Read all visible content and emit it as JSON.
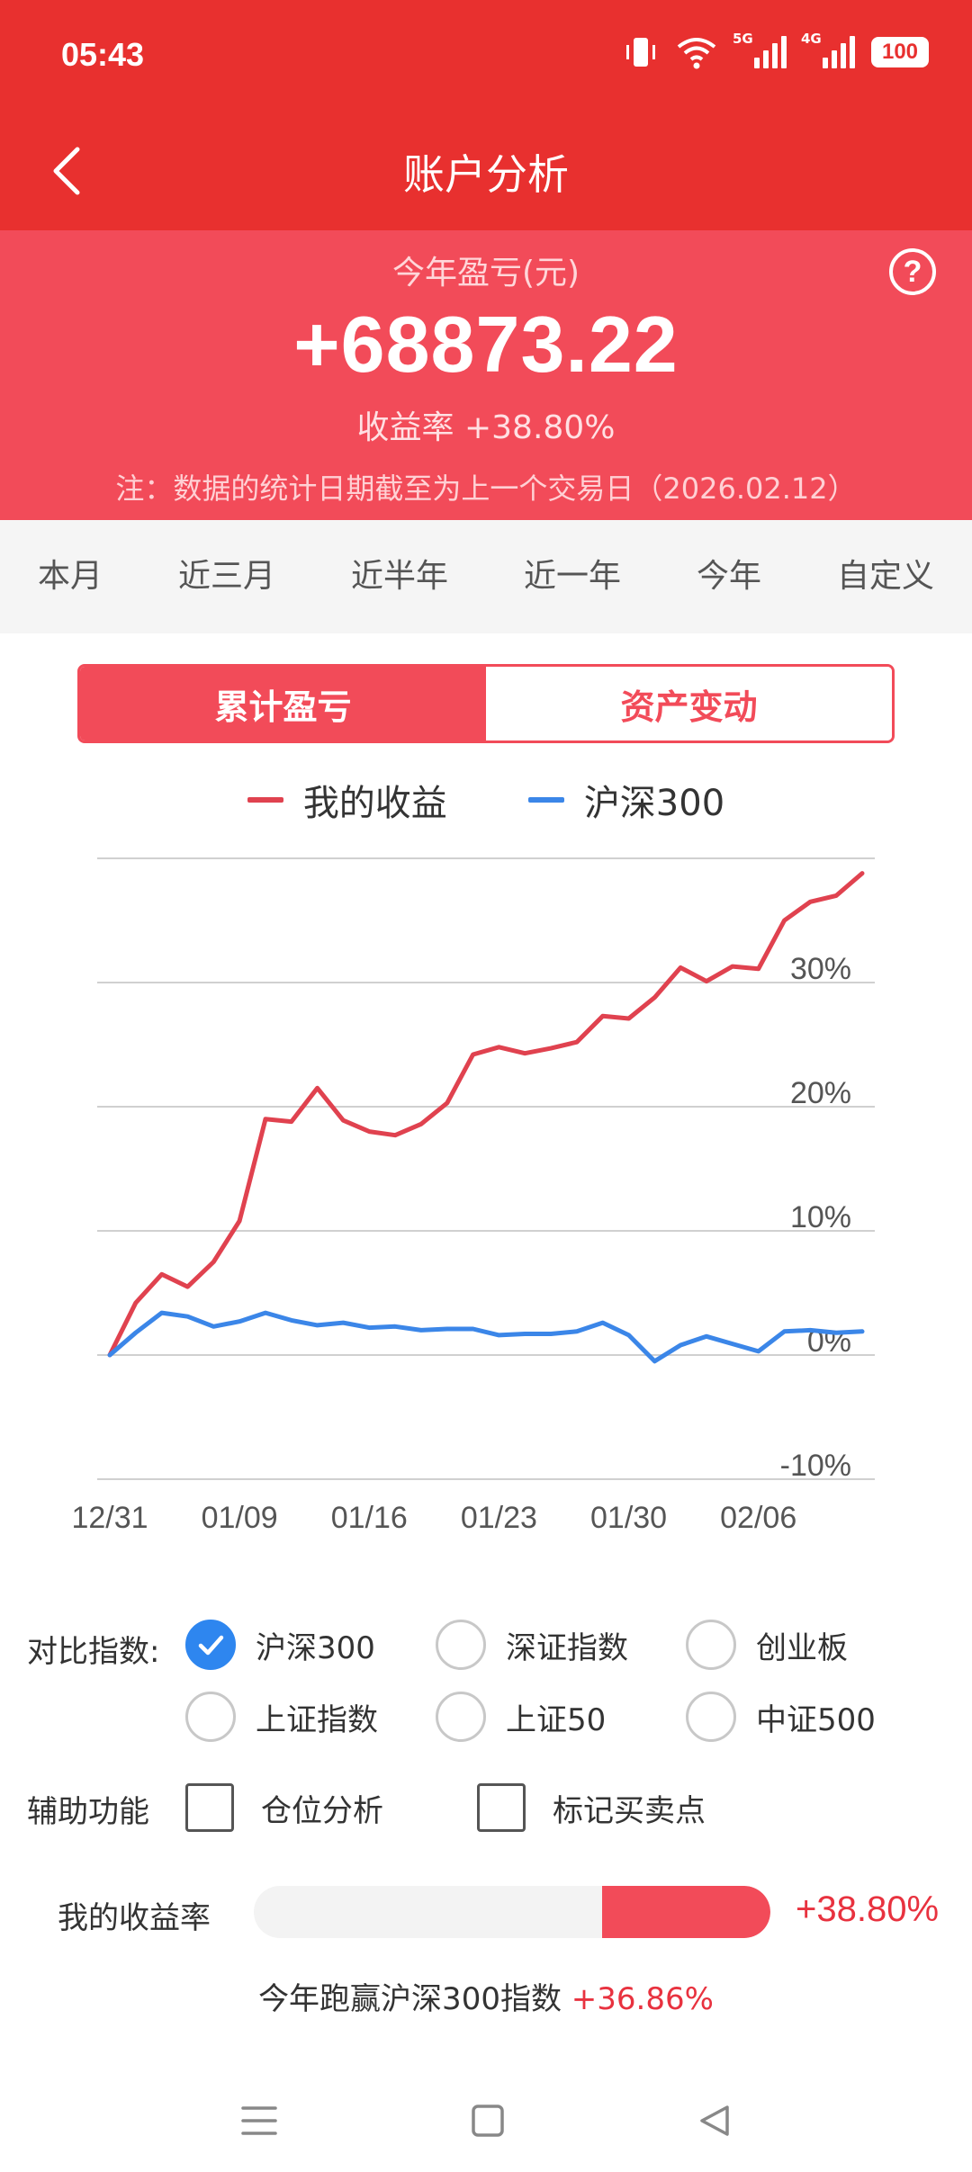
{
  "status": {
    "time": "05:43",
    "net1": "5G",
    "net2": "4G",
    "battery": "100"
  },
  "header": {
    "title": "账户分析"
  },
  "summary": {
    "label": "今年盈亏(元)",
    "value": "+68873.22",
    "rate_text": "收益率 +38.80%",
    "note": "注：数据的统计日期截至为上一个交易日（2026.02.12）"
  },
  "period_tabs": [
    {
      "label": "本月",
      "active": false
    },
    {
      "label": "近三月",
      "active": false
    },
    {
      "label": "近半年",
      "active": false
    },
    {
      "label": "近一年",
      "active": false
    },
    {
      "label": "今年",
      "active": true
    },
    {
      "label": "自定义",
      "active": false
    }
  ],
  "toggle": {
    "cumulative": "累计盈亏",
    "assets": "资产变动"
  },
  "colors": {
    "mine": "#e0424f",
    "index": "#3b86e8",
    "accent": "#f24b59"
  },
  "chart_data": {
    "type": "line",
    "y_ticks": [
      "-10%",
      "0%",
      "10%",
      "20%",
      "30%"
    ],
    "ylim": [
      -10,
      40
    ],
    "x_ticks": [
      {
        "label": "12/31",
        "x": 0
      },
      {
        "label": "01/09",
        "x": 5
      },
      {
        "label": "01/16",
        "x": 10
      },
      {
        "label": "01/23",
        "x": 15
      },
      {
        "label": "01/30",
        "x": 20
      },
      {
        "label": "02/06",
        "x": 25
      }
    ],
    "xlim": [
      0,
      29
    ],
    "series": [
      {
        "name": "我的收益",
        "values": [
          0,
          4.2,
          6.5,
          5.5,
          7.5,
          10.8,
          19.0,
          18.8,
          21.5,
          18.9,
          18.0,
          17.7,
          18.6,
          20.3,
          24.2,
          24.8,
          24.3,
          24.7,
          25.2,
          27.3,
          27.1,
          28.8,
          31.2,
          30.1,
          31.3,
          31.1,
          35.0,
          36.5,
          37.0,
          38.8
        ]
      },
      {
        "name": "沪深300",
        "values": [
          0,
          1.8,
          3.4,
          3.1,
          2.3,
          2.7,
          3.4,
          2.8,
          2.4,
          2.6,
          2.2,
          2.3,
          2.0,
          2.1,
          2.1,
          1.6,
          1.7,
          1.7,
          1.9,
          2.6,
          1.6,
          -0.5,
          0.8,
          1.5,
          0.9,
          0.3,
          1.9,
          2.0,
          1.8,
          1.9
        ]
      }
    ]
  },
  "compare": {
    "label": "对比指数:",
    "options": [
      {
        "label": "沪深300",
        "checked": true
      },
      {
        "label": "深证指数",
        "checked": false
      },
      {
        "label": "创业板",
        "checked": false
      },
      {
        "label": "上证指数",
        "checked": false
      },
      {
        "label": "上证50",
        "checked": false
      },
      {
        "label": "中证500",
        "checked": false
      }
    ]
  },
  "assist": {
    "label": "辅助功能",
    "options": [
      {
        "label": "仓位分析",
        "checked": false
      },
      {
        "label": "标记买卖点",
        "checked": false
      }
    ]
  },
  "return_bar": {
    "label": "我的收益率",
    "value": "+38.80%",
    "fill_fraction": 0.325
  },
  "beat": {
    "text": "今年跑赢沪深300指数",
    "value": "+36.86%"
  }
}
